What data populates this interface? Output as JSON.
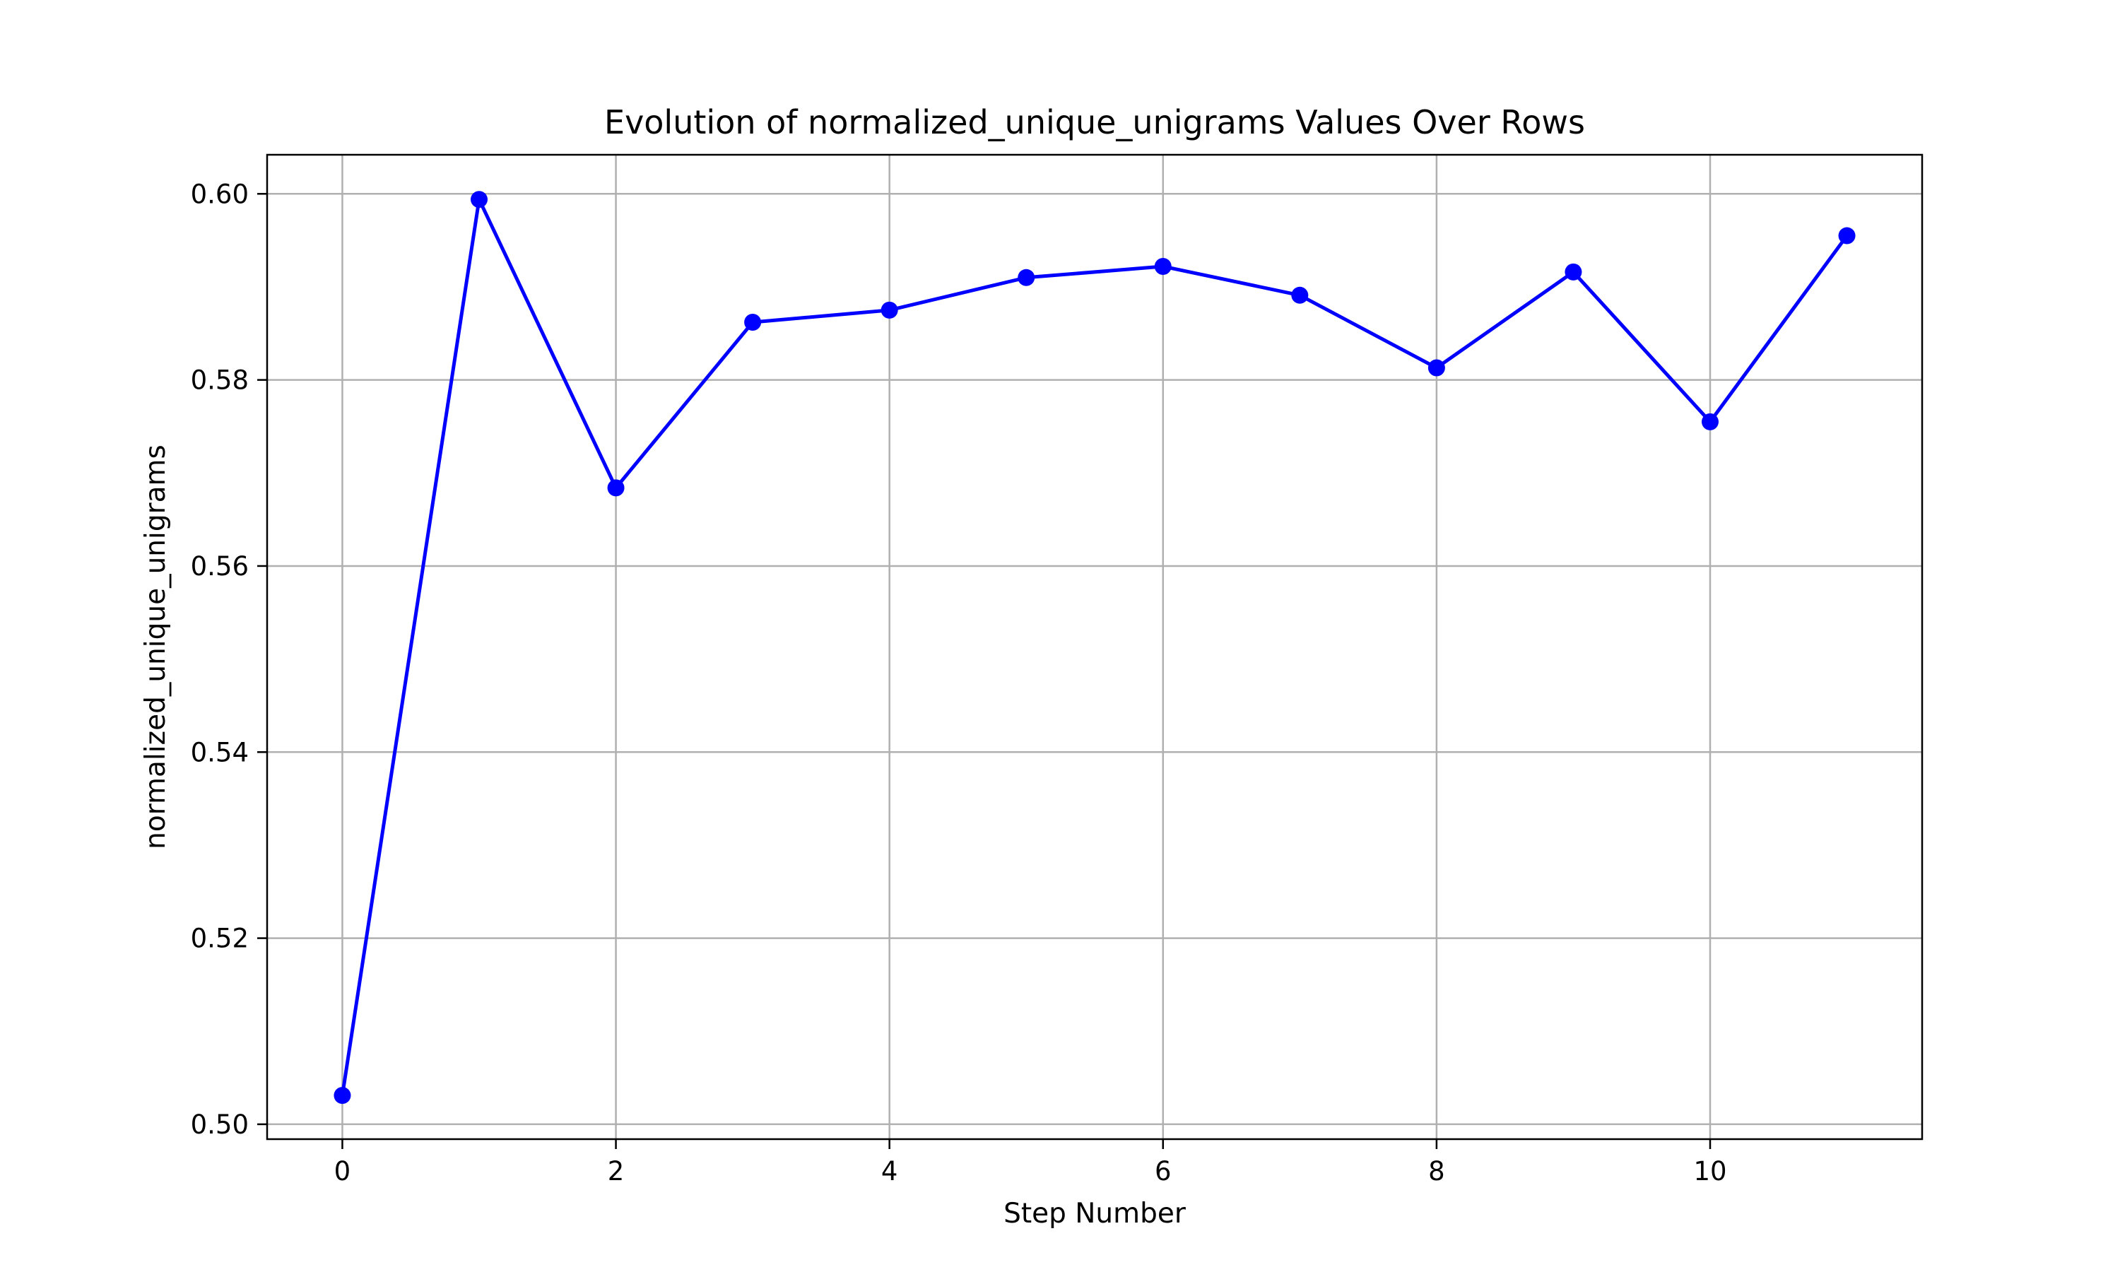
{
  "chart_data": {
    "type": "line",
    "title": "Evolution of normalized_unique_unigrams Values Over Rows",
    "xlabel": "Step Number",
    "ylabel": "normalized_unique_unigrams",
    "xlim": [
      -0.55,
      11.55
    ],
    "ylim": [
      0.4984,
      0.6042
    ],
    "x_ticks": [
      0,
      2,
      4,
      6,
      8,
      10
    ],
    "x_tick_labels": [
      "0",
      "2",
      "4",
      "6",
      "8",
      "10"
    ],
    "y_ticks": [
      0.5,
      0.52,
      0.54,
      0.56,
      0.58,
      0.6
    ],
    "y_tick_labels": [
      "0.50",
      "0.52",
      "0.54",
      "0.56",
      "0.58",
      "0.60"
    ],
    "grid": true,
    "series": [
      {
        "color": "#0000ff",
        "marker": "circle",
        "x": [
          0,
          1,
          2,
          3,
          4,
          5,
          6,
          7,
          8,
          9,
          10,
          11
        ],
        "y": [
          0.5031,
          0.5994,
          0.5684,
          0.5862,
          0.5875,
          0.591,
          0.5922,
          0.5891,
          0.5813,
          0.5916,
          0.5755,
          0.5955
        ]
      }
    ]
  }
}
